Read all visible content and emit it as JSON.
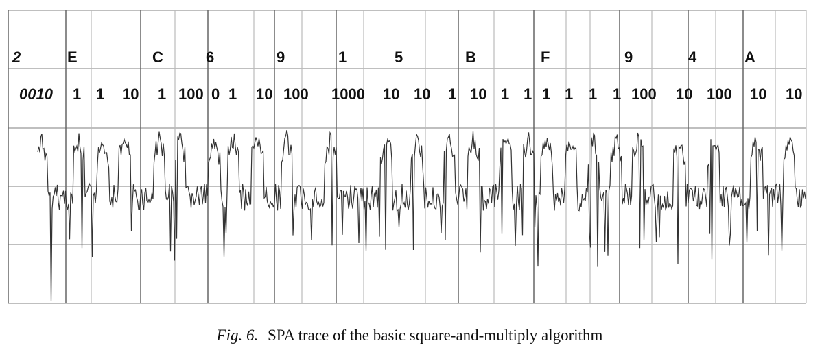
{
  "figure": {
    "hex_labels": [
      "2",
      "E",
      "C",
      "6",
      "9",
      "1",
      "5",
      "B",
      "F",
      "9",
      "4",
      "A"
    ],
    "bit_labels": [
      "0010",
      "1",
      "1",
      "10",
      "1",
      "100",
      "0",
      "1",
      "10",
      "100",
      "1000",
      "10",
      "10",
      "1",
      "10",
      "1",
      "1",
      "1",
      "1",
      "1",
      "1",
      "100",
      "10",
      "100",
      "10",
      "10"
    ],
    "caption": {
      "label": "Fig. 6.",
      "text": "SPA trace of the basic square-and-multiply algorithm"
    }
  }
}
